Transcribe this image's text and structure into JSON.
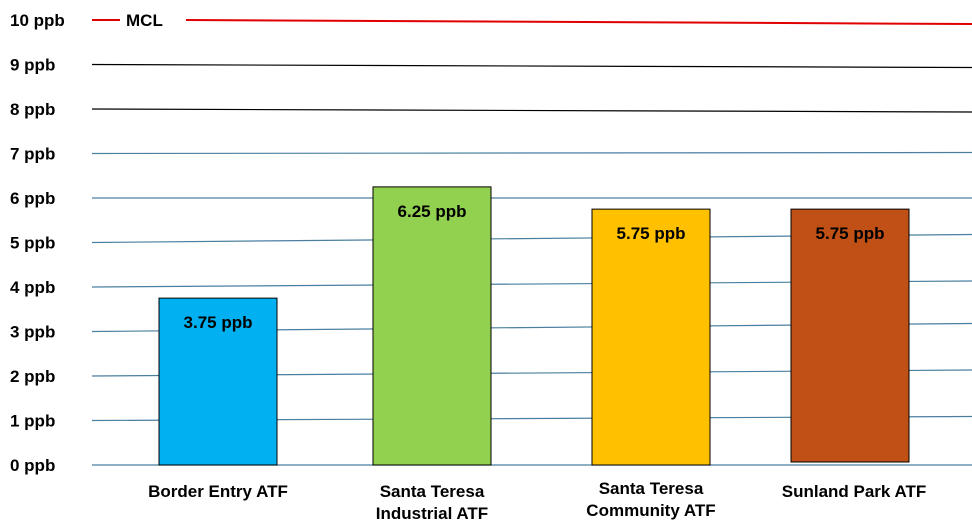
{
  "chart_data": {
    "type": "bar",
    "title": "",
    "xlabel": "",
    "ylabel": "",
    "ylim": [
      0,
      10
    ],
    "yticks": [
      "0 ppb",
      "1 ppb",
      "2 ppb",
      "3 ppb",
      "4 ppb",
      "5 ppb",
      "6 ppb",
      "7 ppb",
      "8 ppb",
      "9 ppb",
      "10 ppb"
    ],
    "categories": [
      [
        "Border Entry ATF"
      ],
      [
        "Santa Teresa",
        "Industrial ATF"
      ],
      [
        "Santa Teresa",
        "Community ATF"
      ],
      [
        "Sunland Park ATF"
      ]
    ],
    "values": [
      3.75,
      6.25,
      5.75,
      5.75
    ],
    "data_labels": [
      "3.75 ppb",
      "6.25 ppb",
      "5.75 ppb",
      "5.75 ppb"
    ],
    "bar_colors": [
      "#00b0f0",
      "#92d050",
      "#ffc000",
      "#c05016"
    ],
    "reference_line": {
      "label": "MCL",
      "value": 10,
      "color": "#e00000"
    },
    "grid": true,
    "grid_color": "#4a7fa0"
  }
}
